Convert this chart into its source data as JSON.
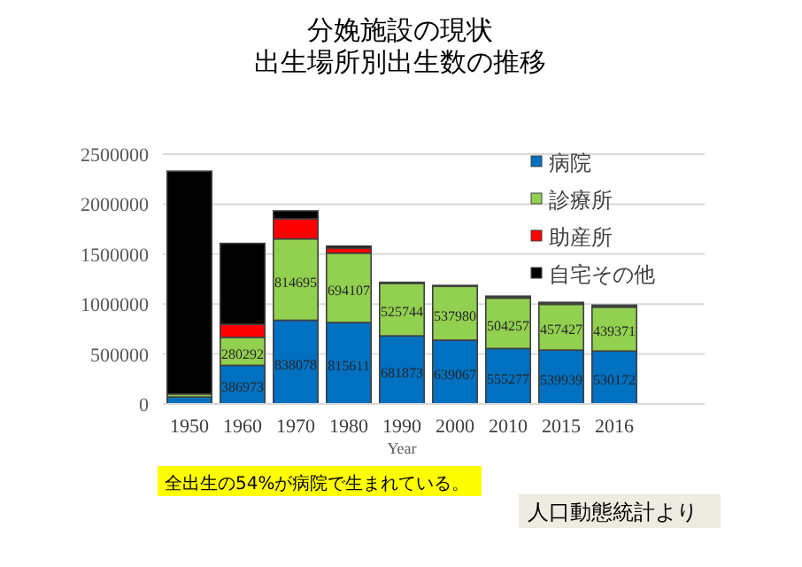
{
  "chart_data": {
    "type": "bar",
    "stacked": true,
    "title": "分娩施設の現状",
    "subtitle": "出生場所別出生数の推移",
    "xlabel": "Year",
    "categories": [
      "1950",
      "1960",
      "1970",
      "1980",
      "1990",
      "2000",
      "2010",
      "2015",
      "2016"
    ],
    "series": [
      {
        "name": "病院",
        "color": "#0070c0",
        "values": [
          70000,
          386973,
          838078,
          815611,
          681873,
          639067,
          555277,
          539939,
          530172
        ],
        "value_labels": [
          null,
          "386973",
          "838078",
          "815611",
          "681873",
          "639067",
          "555277",
          "539939",
          "530172"
        ]
      },
      {
        "name": "診療所",
        "color": "#92d050",
        "values": [
          30000,
          280292,
          814695,
          694107,
          525744,
          537980,
          504257,
          457427,
          439371
        ],
        "value_labels": [
          null,
          "280292",
          "814695",
          "694107",
          "525744",
          "537980",
          "504257",
          "457427",
          "439371"
        ]
      },
      {
        "name": "助産所",
        "color": "#ff0000",
        "values": [
          null,
          130000,
          200000,
          50000,
          null,
          null,
          10000,
          10000,
          10000
        ]
      },
      {
        "name": "自宅その他",
        "color": "#000000",
        "values": [
          2230000,
          810000,
          80000,
          20000,
          10000,
          10000,
          10000,
          10000,
          10000
        ]
      }
    ],
    "ylim": [
      0,
      2500000
    ],
    "yticks": [
      0,
      500000,
      1000000,
      1500000,
      2000000,
      2500000
    ],
    "grid": "y",
    "legend": "top right",
    "annotations": [
      "全出生の54%が病院で生まれている。",
      "人口動態統計より"
    ]
  }
}
